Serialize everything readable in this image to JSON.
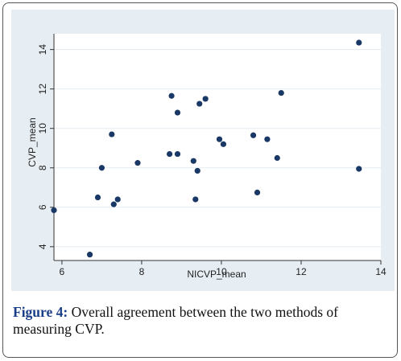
{
  "chart_data": {
    "type": "scatter",
    "xlabel": "NICVP_mean",
    "ylabel": "CVP_mean",
    "xlim": [
      5.8,
      14
    ],
    "ylim": [
      3.3,
      14.8
    ],
    "xticks": [
      6,
      8,
      10,
      12,
      14
    ],
    "yticks": [
      4,
      6,
      8,
      10,
      12,
      14
    ],
    "grid": true,
    "colors": {
      "marker": "#1a3866",
      "plot_bg": "#ffffff",
      "outer_bg": "#e7eef3",
      "grid": "#e3ebf1"
    },
    "points": [
      {
        "x": 5.8,
        "y": 5.85
      },
      {
        "x": 6.7,
        "y": 3.6
      },
      {
        "x": 6.9,
        "y": 6.5
      },
      {
        "x": 7.0,
        "y": 8.0
      },
      {
        "x": 7.25,
        "y": 9.7
      },
      {
        "x": 7.3,
        "y": 6.15
      },
      {
        "x": 7.4,
        "y": 6.4
      },
      {
        "x": 7.9,
        "y": 8.25
      },
      {
        "x": 8.7,
        "y": 8.7
      },
      {
        "x": 8.75,
        "y": 11.65
      },
      {
        "x": 8.9,
        "y": 10.8
      },
      {
        "x": 8.9,
        "y": 8.7
      },
      {
        "x": 9.3,
        "y": 8.35
      },
      {
        "x": 9.35,
        "y": 6.4
      },
      {
        "x": 9.4,
        "y": 7.85
      },
      {
        "x": 9.45,
        "y": 11.25
      },
      {
        "x": 9.6,
        "y": 11.5
      },
      {
        "x": 9.95,
        "y": 9.45
      },
      {
        "x": 10.05,
        "y": 9.2
      },
      {
        "x": 10.8,
        "y": 9.65
      },
      {
        "x": 10.9,
        "y": 6.75
      },
      {
        "x": 11.15,
        "y": 9.45
      },
      {
        "x": 11.4,
        "y": 8.5
      },
      {
        "x": 11.5,
        "y": 11.8
      },
      {
        "x": 13.45,
        "y": 14.35
      },
      {
        "x": 13.45,
        "y": 7.95
      }
    ]
  },
  "caption": {
    "label": "Figure 4:",
    "text": " Overall agreement between the two methods of measuring CVP."
  }
}
